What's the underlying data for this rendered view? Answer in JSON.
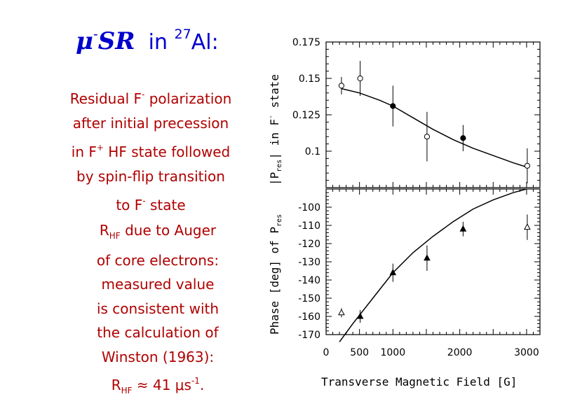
{
  "title": {
    "musr_mu": "μ",
    "musr_minus": "-",
    "musr_sr": "SR",
    "in": "in",
    "isotope_mass": "27",
    "element": "Al:"
  },
  "text_block_1": {
    "l1_a": "Residual F",
    "l1_sup": "-",
    "l1_b": " polarization",
    "l2": "after initial precession",
    "l3_a": "in F",
    "l3_sup": "+",
    "l3_b": " HF state followed",
    "l4": "by spin-flip transition",
    "l5_a": "to F",
    "l5_sup": "-",
    "l5_b": " state"
  },
  "text_block_2": {
    "l1_a": "R",
    "l1_sub": "HF",
    "l1_b": " due to Auger",
    "l2": "of core electrons:",
    "l3": "measured value",
    "l4": "is consistent with",
    "l5": "the calculation of",
    "l6": "Winston (1963):",
    "l7_a": "R",
    "l7_sub": "HF",
    "l7_b": " ≈ 41 μs",
    "l7_sup": "-1",
    "l7_c": "."
  },
  "chart_data": [
    {
      "type": "scatter",
      "panel": "top",
      "ylabel_parts": {
        "bar1": "|P",
        "sub": "res",
        "bar2": "| in F",
        "sup": "-",
        "rest": " state"
      },
      "ylim": [
        0.075,
        0.175
      ],
      "yticks": [
        "0.1",
        "0.125",
        "0.15",
        "0.175"
      ],
      "ytick_values": [
        0.1,
        0.125,
        0.15,
        0.175
      ],
      "series": [
        {
          "marker": "open-circle",
          "x": [
            230,
            510,
            1510,
            3010
          ],
          "y": [
            0.145,
            0.15,
            0.11,
            0.09
          ],
          "err": [
            0.006,
            0.012,
            0.017,
            0.012
          ]
        },
        {
          "marker": "filled-circle",
          "x": [
            1000,
            2050
          ],
          "y": [
            0.131,
            0.109
          ],
          "err": [
            0.014,
            0.009
          ]
        }
      ],
      "fit_curve": {
        "x": [
          230,
          500,
          800,
          1000,
          1300,
          1600,
          1900,
          2200,
          2500,
          2800,
          3010
        ],
        "y": [
          0.143,
          0.14,
          0.135,
          0.131,
          0.123,
          0.115,
          0.108,
          0.102,
          0.097,
          0.092,
          0.089
        ]
      }
    },
    {
      "type": "scatter",
      "panel": "bottom",
      "ylabel_parts": {
        "a": "Phase [deg] of P",
        "sub": "res"
      },
      "ylim": [
        -170,
        -90
      ],
      "yticks": [
        "-100",
        "-110",
        "-120",
        "-130",
        "-140",
        "-150",
        "-160",
        "-170"
      ],
      "ytick_values": [
        -100,
        -110,
        -120,
        -130,
        -140,
        -150,
        -160,
        -170
      ],
      "series": [
        {
          "marker": "open-triangle",
          "x": [
            230,
            3010
          ],
          "y": [
            -158,
            -111
          ],
          "err": [
            2.5,
            7
          ]
        },
        {
          "marker": "filled-triangle",
          "x": [
            510,
            1000,
            1510,
            2050
          ],
          "y": [
            -160,
            -136,
            -128,
            -112
          ],
          "err": [
            3.5,
            5,
            7,
            4
          ]
        }
      ],
      "fit_curve": {
        "x": [
          200,
          400,
          700,
          1000,
          1300,
          1600,
          1900,
          2200,
          2500,
          2800,
          3000
        ],
        "y": [
          -174,
          -164,
          -150,
          -136,
          -125,
          -116,
          -108,
          -101,
          -96,
          -92,
          -90
        ]
      }
    }
  ],
  "xaxis": {
    "label": "Transverse Magnetic Field [G]",
    "xlim": [
      0,
      3200
    ],
    "ticks": [
      "0",
      "500",
      "1000",
      "2000",
      "3000"
    ],
    "tick_values": [
      0,
      500,
      1000,
      2000,
      3000
    ]
  }
}
